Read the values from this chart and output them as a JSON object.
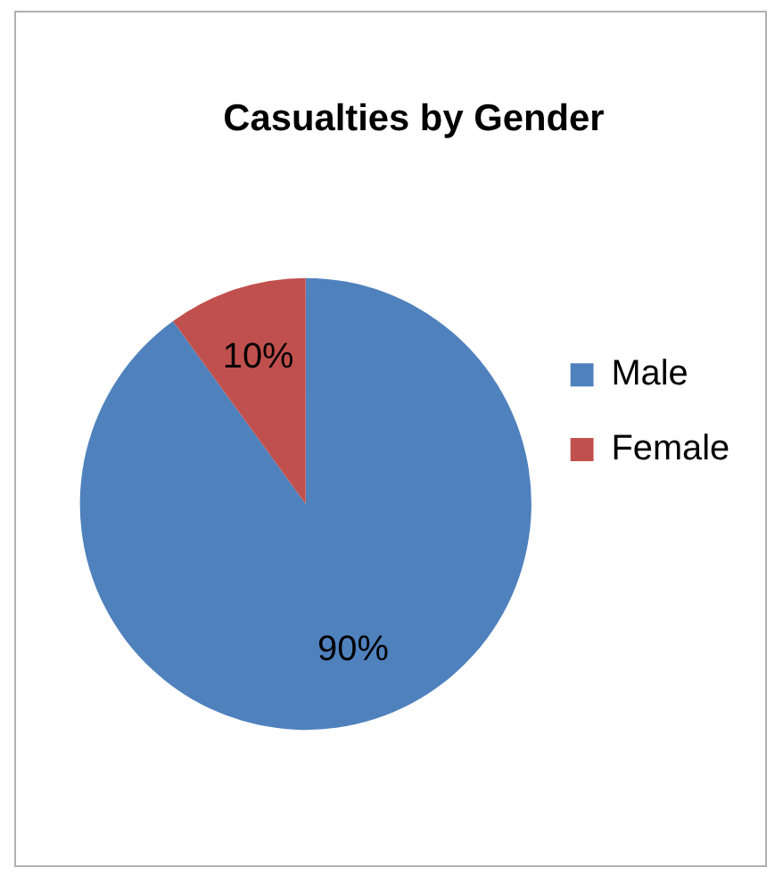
{
  "chart_data": {
    "type": "pie",
    "title": "Casualties by Gender",
    "categories": [
      "Male",
      "Female"
    ],
    "values": [
      90,
      10
    ],
    "colors": [
      "#4f81bd",
      "#c0504d"
    ],
    "value_labels": [
      "90%",
      "10%"
    ],
    "legend": "right"
  }
}
